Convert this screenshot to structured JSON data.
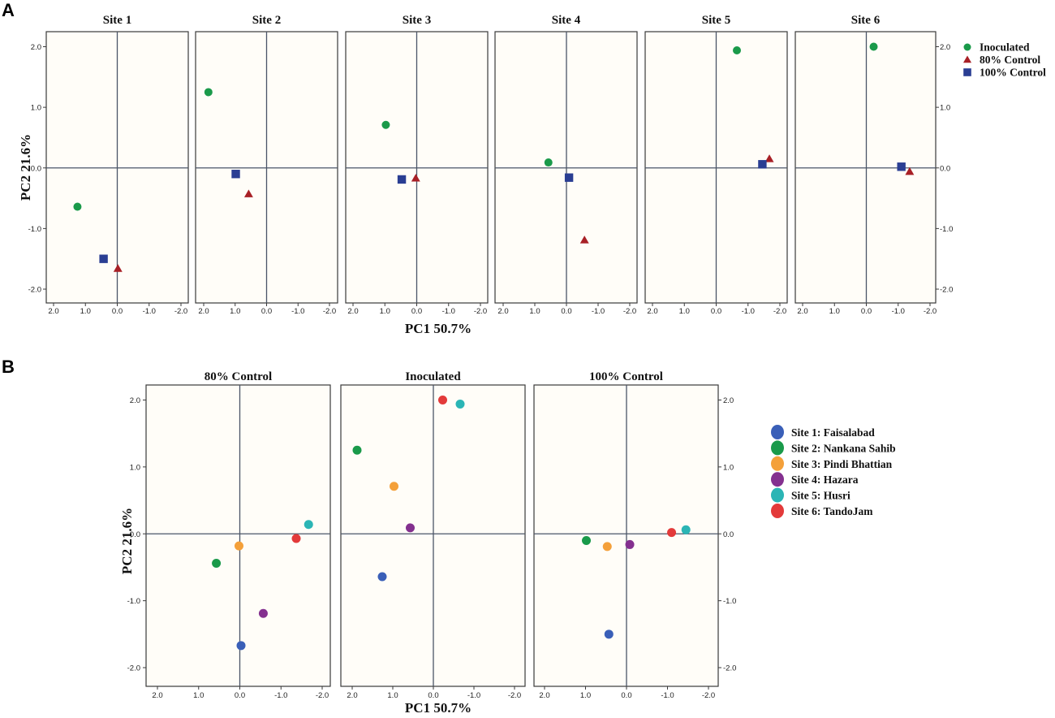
{
  "colors": {
    "treatments": {
      "Inoculated": "#1a9a4a",
      "80% Control": "#a82026",
      "100% Control": "#2a3e93"
    },
    "sites": [
      "#3a5fb8",
      "#1a9a4a",
      "#f4a03a",
      "#84308f",
      "#2bb5b5",
      "#e33a3a"
    ],
    "highlight_title": "#b52a2a",
    "panel_bg": "#fffdf8"
  },
  "chart_data": [
    {
      "type": "scatter",
      "panel_label": "A",
      "xlabel": "PC1 50.7%",
      "ylabel": "PC2 21.6%",
      "xlim": [
        2.3,
        -2.3
      ],
      "ylim": [
        -2.2,
        2.2
      ],
      "xticks": [
        2.0,
        1.0,
        0.0,
        -1.0,
        -2.0
      ],
      "xtick_labels": [
        "2.0",
        "1.0",
        "0.0",
        "-1.0",
        "-2.0"
      ],
      "yticks": [
        2.0,
        1.0,
        0.0,
        -1.0,
        -2.0
      ],
      "ytick_labels": [
        "2.0",
        "1.0",
        "0.0",
        "-1.0",
        "-2.0"
      ],
      "legend": [
        {
          "label": "Inoculated",
          "marker": "circle"
        },
        {
          "label": "80% Control",
          "marker": "triangle"
        },
        {
          "label": "100% Control",
          "marker": "square"
        }
      ],
      "panels": [
        {
          "title": "Site 1",
          "points": [
            {
              "series": "Inoculated",
              "x": 1.25,
              "y": -0.64
            },
            {
              "series": "80% Control",
              "x": -0.02,
              "y": -1.66
            },
            {
              "series": "100% Control",
              "x": 0.43,
              "y": -1.5
            }
          ]
        },
        {
          "title": "Site 2",
          "points": [
            {
              "series": "Inoculated",
              "x": 1.85,
              "y": 1.25
            },
            {
              "series": "80% Control",
              "x": 0.57,
              "y": -0.43
            },
            {
              "series": "100% Control",
              "x": 0.98,
              "y": -0.1
            }
          ]
        },
        {
          "title": "Site 3",
          "points": [
            {
              "series": "Inoculated",
              "x": 0.97,
              "y": 0.71
            },
            {
              "series": "80% Control",
              "x": 0.03,
              "y": -0.17
            },
            {
              "series": "100% Control",
              "x": 0.47,
              "y": -0.19
            }
          ]
        },
        {
          "title": "Site 4",
          "points": [
            {
              "series": "Inoculated",
              "x": 0.57,
              "y": 0.09
            },
            {
              "series": "80% Control",
              "x": -0.57,
              "y": -1.19
            },
            {
              "series": "100% Control",
              "x": -0.08,
              "y": -0.16
            }
          ]
        },
        {
          "title": "Site 5",
          "points": [
            {
              "series": "Inoculated",
              "x": -0.65,
              "y": 1.94
            },
            {
              "series": "80% Control",
              "x": -1.67,
              "y": 0.15
            },
            {
              "series": "100% Control",
              "x": -1.45,
              "y": 0.06
            }
          ]
        },
        {
          "title": "Site 6",
          "points": [
            {
              "series": "Inoculated",
              "x": -0.23,
              "y": 2.0
            },
            {
              "series": "80% Control",
              "x": -1.36,
              "y": -0.06
            },
            {
              "series": "100% Control",
              "x": -1.1,
              "y": 0.02
            }
          ]
        }
      ]
    },
    {
      "type": "scatter",
      "panel_label": "B",
      "xlabel": "PC1 50.7%",
      "ylabel": "PC2 21.6%",
      "xlim": [
        2.4,
        -2.4
      ],
      "ylim": [
        -2.2,
        2.2
      ],
      "xticks": [
        2.0,
        1.0,
        0.0,
        -1.0,
        -2.0
      ],
      "xtick_labels": [
        "2.0",
        "1.0",
        "0.0",
        "-1.0",
        "-2.0"
      ],
      "yticks": [
        2.0,
        1.0,
        0.0,
        -1.0,
        -2.0
      ],
      "ytick_labels": [
        "2.0",
        "1.0",
        "0.0",
        "-1.0",
        "-2.0"
      ],
      "legend": [
        {
          "label": "Site 1: Faisalabad",
          "marker": "circle"
        },
        {
          "label": "Site 2: Nankana Sahib",
          "marker": "circle"
        },
        {
          "label": "Site 3: Pindi Bhattian",
          "marker": "circle"
        },
        {
          "label": "Site 4: Hazara",
          "marker": "circle"
        },
        {
          "label": "Site 5: Husri",
          "marker": "circle"
        },
        {
          "label": "Site 6: TandoJam",
          "marker": "circle"
        }
      ],
      "panels": [
        {
          "title": "80% Control",
          "highlight": false,
          "points": [
            {
              "site": 1,
              "x": -0.03,
              "y": -1.67
            },
            {
              "site": 2,
              "x": 0.57,
              "y": -0.44
            },
            {
              "site": 3,
              "x": 0.02,
              "y": -0.18
            },
            {
              "site": 4,
              "x": -0.57,
              "y": -1.19
            },
            {
              "site": 5,
              "x": -1.67,
              "y": 0.14
            },
            {
              "site": 6,
              "x": -1.37,
              "y": -0.07
            }
          ]
        },
        {
          "title": "Inoculated",
          "highlight": true,
          "points": [
            {
              "site": 1,
              "x": 1.26,
              "y": -0.64
            },
            {
              "site": 2,
              "x": 1.88,
              "y": 1.25
            },
            {
              "site": 3,
              "x": 0.97,
              "y": 0.71
            },
            {
              "site": 4,
              "x": 0.57,
              "y": 0.09
            },
            {
              "site": 5,
              "x": -0.66,
              "y": 1.94
            },
            {
              "site": 6,
              "x": -0.23,
              "y": 2.0
            }
          ]
        },
        {
          "title": "100% Control",
          "highlight": false,
          "points": [
            {
              "site": 1,
              "x": 0.43,
              "y": -1.5
            },
            {
              "site": 2,
              "x": 0.98,
              "y": -0.1
            },
            {
              "site": 3,
              "x": 0.47,
              "y": -0.19
            },
            {
              "site": 4,
              "x": -0.08,
              "y": -0.16
            },
            {
              "site": 5,
              "x": -1.45,
              "y": 0.06
            },
            {
              "site": 6,
              "x": -1.1,
              "y": 0.02
            }
          ]
        }
      ]
    }
  ]
}
